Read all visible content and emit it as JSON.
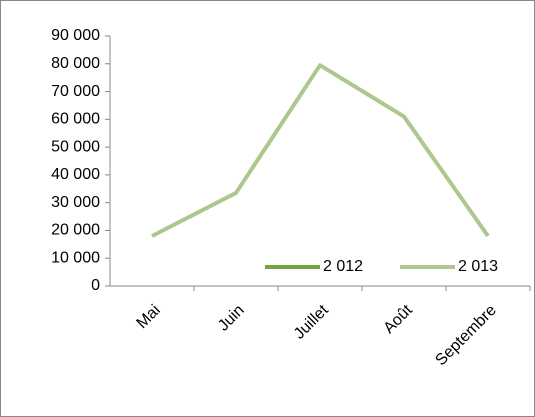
{
  "chart_data": {
    "type": "line",
    "categories": [
      "Mai",
      "Juin",
      "Juillet",
      "Août",
      "Septembre"
    ],
    "series": [
      {
        "name": "2 012",
        "color": "#77a043",
        "values": [
          null,
          null,
          null,
          null,
          null
        ]
      },
      {
        "name": "2 013",
        "color": "#adc88c",
        "values": [
          18000,
          33500,
          79500,
          61000,
          18000
        ]
      }
    ],
    "ylim": [
      0,
      90000
    ],
    "yticks": [
      0,
      {
        "value": 10000,
        "label": "10 000"
      },
      {
        "value": 20000,
        "label": "20 000"
      },
      {
        "value": 30000,
        "label": "30 000"
      },
      {
        "value": 40000,
        "label": "40 000"
      },
      {
        "value": 50000,
        "label": "50 000"
      },
      {
        "value": 60000,
        "label": "60 000"
      },
      {
        "value": 70000,
        "label": "70 000"
      },
      {
        "value": 80000,
        "label": "80 000"
      },
      {
        "value": 90000,
        "label": "90 000"
      }
    ],
    "grid": false,
    "legend": "bottom-right"
  }
}
